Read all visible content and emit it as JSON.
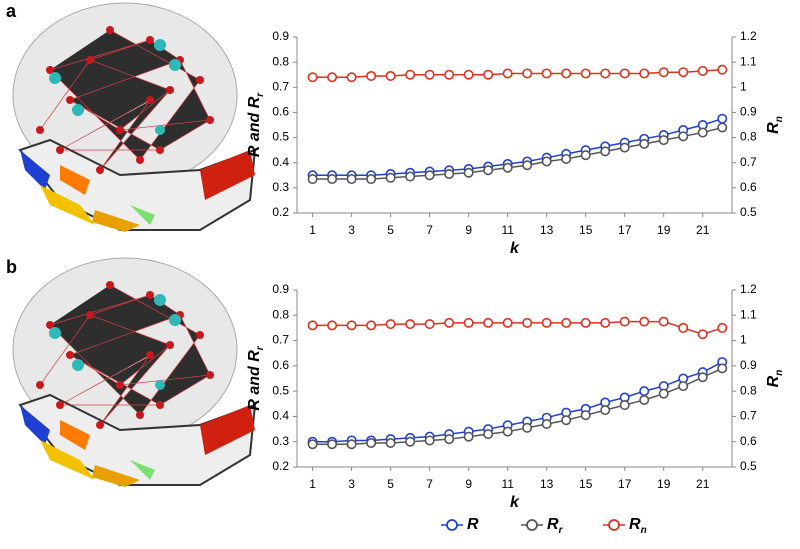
{
  "panels": [
    "a",
    "b"
  ],
  "chart_data": [
    {
      "type": "line",
      "xlabel": "k",
      "ylabel": "R and R",
      "ylabel_sub": "r",
      "y2label": "R",
      "y2label_sub": "n",
      "x": [
        1,
        2,
        3,
        4,
        5,
        6,
        7,
        8,
        9,
        10,
        11,
        12,
        13,
        14,
        15,
        16,
        17,
        18,
        19,
        20,
        21,
        22
      ],
      "xlim": [
        0.2,
        22.5
      ],
      "xticks": [
        1,
        3,
        5,
        7,
        9,
        11,
        13,
        15,
        17,
        19,
        21
      ],
      "ylim": [
        0.2,
        0.9
      ],
      "yticks": [
        0.2,
        0.3,
        0.4,
        0.5,
        0.6,
        0.7,
        0.8,
        0.9
      ],
      "y2lim": [
        0.5,
        1.2
      ],
      "y2ticks": [
        0.5,
        0.6,
        0.7,
        0.8,
        0.9,
        1,
        1.1,
        1.2
      ],
      "series": [
        {
          "name": "R",
          "name_sub": "",
          "color": "#1f3fd0",
          "values": [
            0.35,
            0.35,
            0.35,
            0.35,
            0.355,
            0.36,
            0.365,
            0.37,
            0.375,
            0.385,
            0.395,
            0.405,
            0.42,
            0.435,
            0.45,
            0.465,
            0.48,
            0.495,
            0.51,
            0.53,
            0.55,
            0.575
          ]
        },
        {
          "name": "R",
          "name_sub": "r",
          "color": "#555555",
          "values": [
            0.335,
            0.335,
            0.335,
            0.335,
            0.34,
            0.345,
            0.35,
            0.355,
            0.36,
            0.37,
            0.38,
            0.39,
            0.405,
            0.415,
            0.43,
            0.445,
            0.46,
            0.475,
            0.49,
            0.505,
            0.52,
            0.54
          ]
        },
        {
          "name": "R",
          "name_sub": "n",
          "color": "#e0301e",
          "axis": "y2",
          "values": [
            1.04,
            1.04,
            1.04,
            1.045,
            1.045,
            1.05,
            1.05,
            1.05,
            1.05,
            1.05,
            1.055,
            1.055,
            1.055,
            1.055,
            1.055,
            1.055,
            1.055,
            1.055,
            1.06,
            1.06,
            1.065,
            1.07
          ]
        }
      ]
    },
    {
      "type": "line",
      "xlabel": "k",
      "ylabel": "R and R",
      "ylabel_sub": "r",
      "y2label": "R",
      "y2label_sub": "n",
      "x": [
        1,
        2,
        3,
        4,
        5,
        6,
        7,
        8,
        9,
        10,
        11,
        12,
        13,
        14,
        15,
        16,
        17,
        18,
        19,
        20,
        21,
        22
      ],
      "xlim": [
        0.2,
        22.5
      ],
      "xticks": [
        1,
        3,
        5,
        7,
        9,
        11,
        13,
        15,
        17,
        19,
        21
      ],
      "ylim": [
        0.2,
        0.9
      ],
      "yticks": [
        0.2,
        0.3,
        0.4,
        0.5,
        0.6,
        0.7,
        0.8,
        0.9
      ],
      "y2lim": [
        0.5,
        1.2
      ],
      "y2ticks": [
        0.5,
        0.6,
        0.7,
        0.8,
        0.9,
        1,
        1.1,
        1.2
      ],
      "series": [
        {
          "color": "#1f3fd0",
          "values": [
            0.3,
            0.3,
            0.305,
            0.305,
            0.31,
            0.315,
            0.32,
            0.33,
            0.34,
            0.35,
            0.365,
            0.38,
            0.395,
            0.415,
            0.43,
            0.455,
            0.475,
            0.5,
            0.52,
            0.55,
            0.575,
            0.615
          ]
        },
        {
          "color": "#555555",
          "values": [
            0.29,
            0.29,
            0.29,
            0.295,
            0.295,
            0.3,
            0.305,
            0.31,
            0.32,
            0.33,
            0.34,
            0.355,
            0.37,
            0.385,
            0.405,
            0.425,
            0.445,
            0.465,
            0.49,
            0.52,
            0.555,
            0.59
          ]
        },
        {
          "color": "#e0301e",
          "axis": "y2",
          "values": [
            1.06,
            1.06,
            1.06,
            1.06,
            1.065,
            1.065,
            1.065,
            1.07,
            1.07,
            1.07,
            1.07,
            1.07,
            1.07,
            1.07,
            1.07,
            1.07,
            1.075,
            1.075,
            1.075,
            1.05,
            1.025,
            1.05
          ]
        }
      ]
    }
  ]
}
